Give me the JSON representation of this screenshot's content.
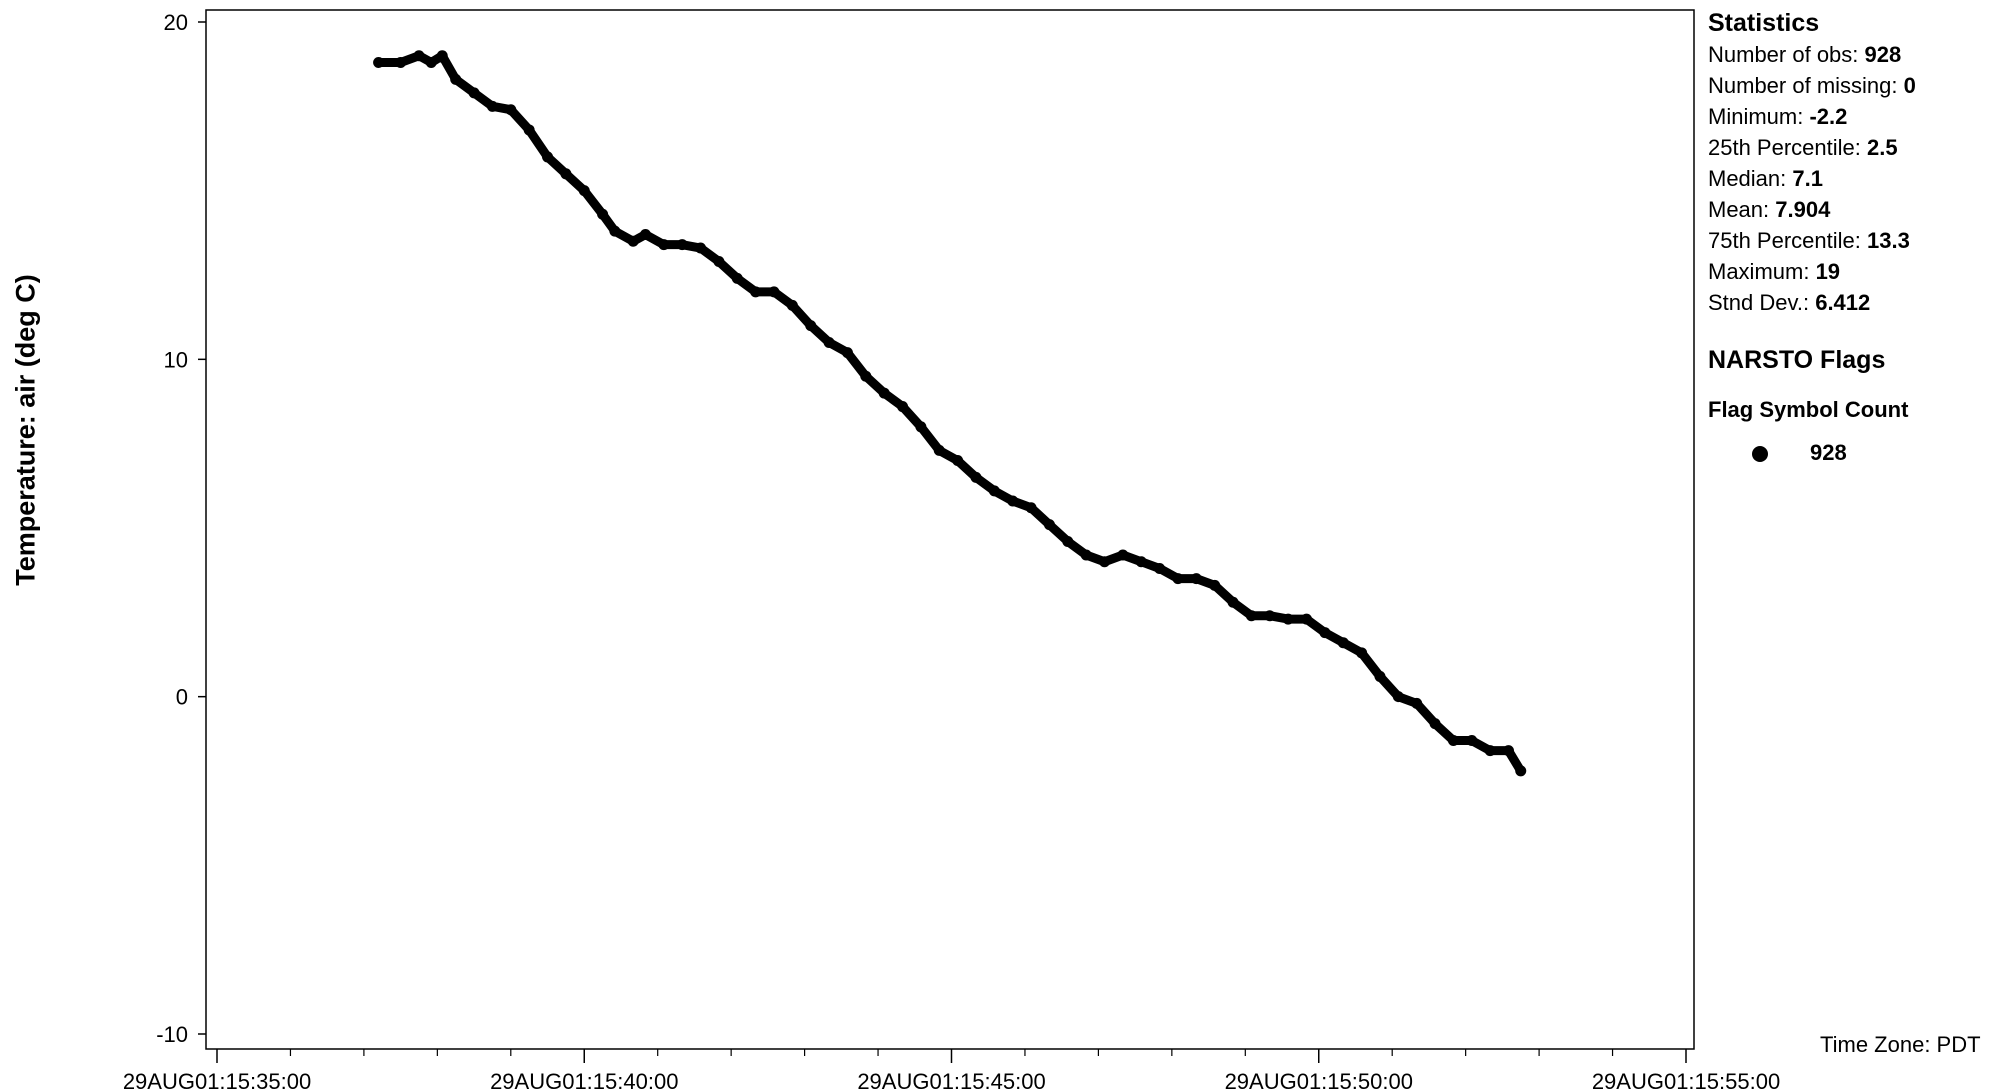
{
  "statistics": {
    "title": "Statistics",
    "rows": [
      {
        "label": "Number of obs: ",
        "value": "928"
      },
      {
        "label": "Number of missing: ",
        "value": "0"
      },
      {
        "label": "Minimum: ",
        "value": "-2.2"
      },
      {
        "label": "25th Percentile: ",
        "value": "2.5"
      },
      {
        "label": "Median: ",
        "value": "7.1"
      },
      {
        "label": "Mean: ",
        "value": "7.904"
      },
      {
        "label": "75th Percentile: ",
        "value": "13.3"
      },
      {
        "label": "Maximum: ",
        "value": "19"
      },
      {
        "label": "Stnd Dev.: ",
        "value": "6.412"
      }
    ]
  },
  "flags": {
    "title": "NARSTO Flags",
    "header": "Flag Symbol Count",
    "count": "928"
  },
  "time_zone": "Time Zone: PDT",
  "chart_data": {
    "type": "scatter",
    "ylabel": "Temperature: air (deg C)",
    "xlabel": "",
    "ylim": [
      -10,
      20
    ],
    "yticks": [
      20,
      10,
      0,
      -10
    ],
    "xlim": [
      "29AUG01:15:35:00",
      "29AUG01:15:55:00"
    ],
    "xticks": [
      "29AUG01:15:35:00",
      "29AUG01:15:40:00",
      "29AUG01:15:45:00",
      "29AUG01:15:50:00",
      "29AUG01:15:55:00"
    ],
    "grid": false,
    "marker_color": "#000000",
    "series": [
      {
        "x": [
          "29AUG01:15:37:12",
          "29AUG01:15:37:30",
          "29AUG01:15:37:45",
          "29AUG01:15:37:55",
          "29AUG01:15:38:04",
          "29AUG01:15:38:15",
          "29AUG01:15:38:30",
          "29AUG01:15:38:45",
          "29AUG01:15:39:00",
          "29AUG01:15:39:15",
          "29AUG01:15:39:30",
          "29AUG01:15:39:45",
          "29AUG01:15:40:00",
          "29AUG01:15:40:15",
          "29AUG01:15:40:25",
          "29AUG01:15:40:40",
          "29AUG01:15:40:50",
          "29AUG01:15:41:05",
          "29AUG01:15:41:20",
          "29AUG01:15:41:35",
          "29AUG01:15:41:50",
          "29AUG01:15:42:05",
          "29AUG01:15:42:20",
          "29AUG01:15:42:35",
          "29AUG01:15:42:50",
          "29AUG01:15:43:05",
          "29AUG01:15:43:20",
          "29AUG01:15:43:35",
          "29AUG01:15:43:50",
          "29AUG01:15:44:05",
          "29AUG01:15:44:20",
          "29AUG01:15:44:35",
          "29AUG01:15:44:50",
          "29AUG01:15:45:05",
          "29AUG01:15:45:20",
          "29AUG01:15:45:35",
          "29AUG01:15:45:50",
          "29AUG01:15:46:05",
          "29AUG01:15:46:20",
          "29AUG01:15:46:35",
          "29AUG01:15:46:50",
          "29AUG01:15:47:05",
          "29AUG01:15:47:20",
          "29AUG01:15:47:35",
          "29AUG01:15:47:50",
          "29AUG01:15:48:05",
          "29AUG01:15:48:20",
          "29AUG01:15:48:35",
          "29AUG01:15:48:50",
          "29AUG01:15:49:05",
          "29AUG01:15:49:20",
          "29AUG01:15:49:35",
          "29AUG01:15:49:50",
          "29AUG01:15:50:05",
          "29AUG01:15:50:20",
          "29AUG01:15:50:35",
          "29AUG01:15:50:50",
          "29AUG01:15:51:05",
          "29AUG01:15:51:20",
          "29AUG01:15:51:35",
          "29AUG01:15:51:50",
          "29AUG01:15:52:05",
          "29AUG01:15:52:20",
          "29AUG01:15:52:35",
          "29AUG01:15:52:45"
        ],
        "y": [
          18.8,
          18.8,
          19.0,
          18.8,
          19.0,
          18.3,
          17.9,
          17.5,
          17.4,
          16.8,
          16.0,
          15.5,
          15.0,
          14.3,
          13.8,
          13.5,
          13.7,
          13.4,
          13.4,
          13.3,
          12.9,
          12.4,
          12.0,
          12.0,
          11.6,
          11.0,
          10.5,
          10.2,
          9.5,
          9.0,
          8.6,
          8.0,
          7.3,
          7.0,
          6.5,
          6.1,
          5.8,
          5.6,
          5.1,
          4.6,
          4.2,
          4.0,
          4.2,
          4.0,
          3.8,
          3.5,
          3.5,
          3.3,
          2.8,
          2.4,
          2.4,
          2.3,
          2.3,
          1.9,
          1.6,
          1.3,
          0.6,
          0.0,
          -0.2,
          -0.8,
          -1.3,
          -1.3,
          -1.6,
          -1.6,
          -2.2
        ]
      }
    ]
  }
}
